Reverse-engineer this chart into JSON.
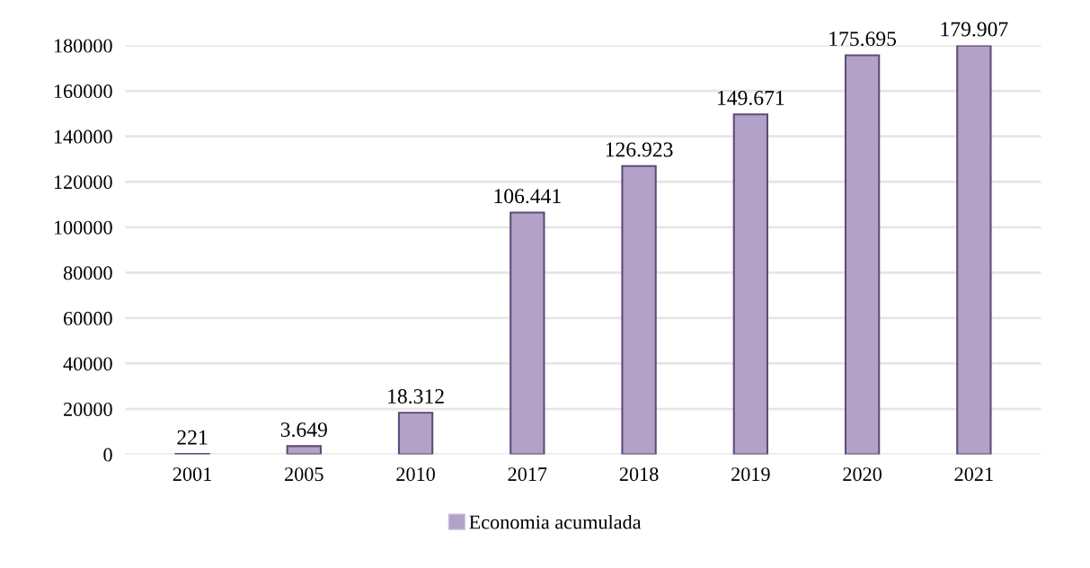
{
  "chart_data": {
    "type": "bar",
    "categories": [
      "2001",
      "2005",
      "2010",
      "2017",
      "2018",
      "2019",
      "2020",
      "2021"
    ],
    "series": [
      {
        "name": "Economia acumulada",
        "color": "#b3a2c7",
        "values": [
          221,
          3649,
          18312,
          106441,
          126923,
          149671,
          175695,
          179907
        ],
        "value_labels": [
          "221",
          "3.649",
          "18.312",
          "106.441",
          "126.923",
          "149.671",
          "175.695",
          "179.907"
        ]
      }
    ],
    "ylim": [
      0,
      180000
    ],
    "yticks": [
      0,
      20000,
      40000,
      60000,
      80000,
      100000,
      120000,
      140000,
      160000,
      180000
    ],
    "grid": "y",
    "legend": "bottom"
  }
}
